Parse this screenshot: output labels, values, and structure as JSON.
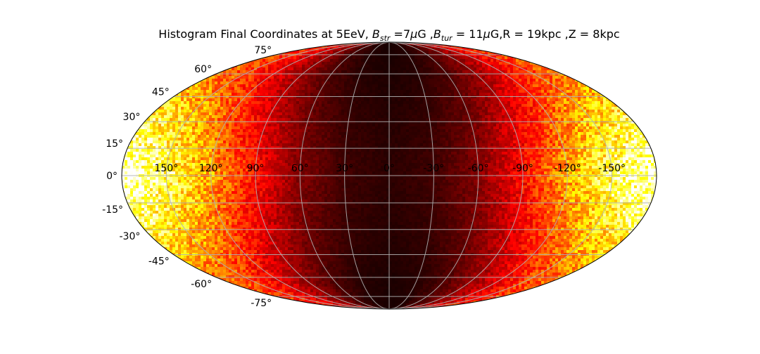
{
  "chart_data": {
    "type": "heatmap",
    "projection": "mollweide",
    "title_parts": {
      "prefix": "Histogram Final Coordinates at 5EeV, ",
      "b_str_symbol": "B",
      "b_str_sub": "str",
      "b_str_value": " =7",
      "mu": "μ",
      "b_str_unit": "G ,",
      "b_tur_symbol": "B",
      "b_tur_sub": "tur",
      "b_tur_value": " = 11",
      "b_tur_unit": "G,R = 19kpc ,Z = 8kpc"
    },
    "colormap": "hot",
    "longitude_ticks": [
      {
        "value": 150,
        "label": "150°"
      },
      {
        "value": 120,
        "label": "120°"
      },
      {
        "value": 90,
        "label": "90°"
      },
      {
        "value": 60,
        "label": "60°"
      },
      {
        "value": 30,
        "label": "30°"
      },
      {
        "value": 0,
        "label": "0°"
      },
      {
        "value": -30,
        "label": "-30°"
      },
      {
        "value": -60,
        "label": "-60°"
      },
      {
        "value": -90,
        "label": "-90°"
      },
      {
        "value": -120,
        "label": "-120°"
      },
      {
        "value": -150,
        "label": "-150°"
      }
    ],
    "latitude_ticks": [
      {
        "value": 75,
        "label": "75°"
      },
      {
        "value": 60,
        "label": "60°"
      },
      {
        "value": 45,
        "label": "45°"
      },
      {
        "value": 30,
        "label": "30°"
      },
      {
        "value": 15,
        "label": "15°"
      },
      {
        "value": 0,
        "label": "0°"
      },
      {
        "value": -15,
        "label": "-15°"
      },
      {
        "value": -30,
        "label": "-30°"
      },
      {
        "value": -45,
        "label": "-45°"
      },
      {
        "value": -60,
        "label": "-60°"
      },
      {
        "value": -75,
        "label": "-75°"
      }
    ],
    "longitude_range": [
      180,
      -180
    ],
    "latitude_range": [
      -90,
      90
    ],
    "grid": true,
    "intensity_profile": {
      "description": "counts are lowest near longitude 0 and highest near longitude ±180, peaking near the equator",
      "lon_deg": [
        0,
        30,
        60,
        90,
        120,
        150,
        180
      ],
      "relative_intensity": [
        0.05,
        0.08,
        0.18,
        0.38,
        0.62,
        0.85,
        1.0
      ],
      "lat_deg": [
        0,
        30,
        60,
        90
      ],
      "lat_falloff": [
        1.0,
        0.82,
        0.55,
        0.4
      ]
    }
  }
}
